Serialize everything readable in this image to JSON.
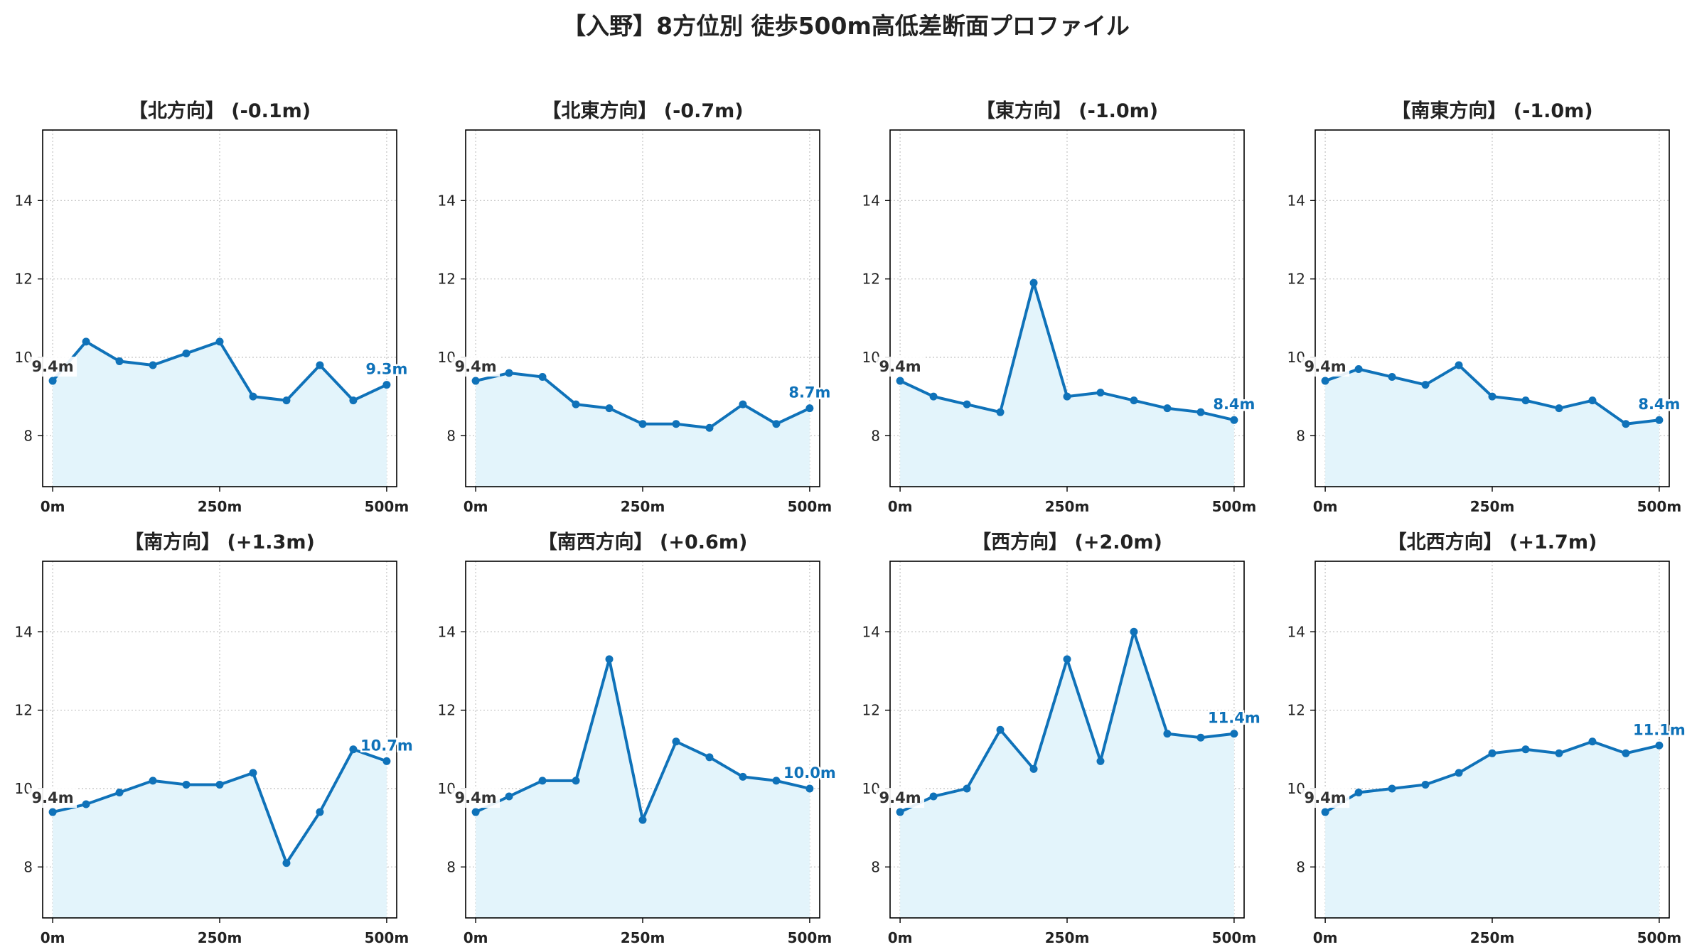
{
  "figure": {
    "title": "【入野】8方位別 徒歩500m高低差断面プロファイル"
  },
  "colors": {
    "line": "#0f72b9",
    "fill": "#e3f4fb",
    "end_label": "#0f72b9",
    "start_label": "#333333",
    "grid": "#c8c8c8",
    "axis": "#000000"
  },
  "chart_data": [
    {
      "type": "line",
      "title": "【北方向】 (-0.1m)",
      "x": [
        0,
        50,
        100,
        150,
        200,
        250,
        300,
        350,
        400,
        450,
        500
      ],
      "values": [
        9.4,
        10.4,
        9.9,
        9.8,
        10.1,
        10.4,
        9.0,
        8.9,
        9.8,
        8.9,
        9.3
      ],
      "start_label": "9.4m",
      "end_label": "9.3m",
      "xticks": [
        "0m",
        "250m",
        "500m"
      ],
      "yticks": [
        "8",
        "10",
        "12",
        "14"
      ],
      "ylim": [
        6.7,
        15.8
      ],
      "xlim": [
        -15,
        515
      ],
      "grid": true
    },
    {
      "type": "line",
      "title": "【北東方向】 (-0.7m)",
      "x": [
        0,
        50,
        100,
        150,
        200,
        250,
        300,
        350,
        400,
        450,
        500
      ],
      "values": [
        9.4,
        9.6,
        9.5,
        8.8,
        8.7,
        8.3,
        8.3,
        8.2,
        8.8,
        8.3,
        8.7
      ],
      "start_label": "9.4m",
      "end_label": "8.7m",
      "xticks": [
        "0m",
        "250m",
        "500m"
      ],
      "yticks": [
        "8",
        "10",
        "12",
        "14"
      ],
      "ylim": [
        6.7,
        15.8
      ],
      "xlim": [
        -15,
        515
      ],
      "grid": true
    },
    {
      "type": "line",
      "title": "【東方向】 (-1.0m)",
      "x": [
        0,
        50,
        100,
        150,
        200,
        250,
        300,
        350,
        400,
        450,
        500
      ],
      "values": [
        9.4,
        9.0,
        8.8,
        8.6,
        11.9,
        9.0,
        9.1,
        8.9,
        8.7,
        8.6,
        8.4
      ],
      "start_label": "9.4m",
      "end_label": "8.4m",
      "xticks": [
        "0m",
        "250m",
        "500m"
      ],
      "yticks": [
        "8",
        "10",
        "12",
        "14"
      ],
      "ylim": [
        6.7,
        15.8
      ],
      "xlim": [
        -15,
        515
      ],
      "grid": true
    },
    {
      "type": "line",
      "title": "【南東方向】 (-1.0m)",
      "x": [
        0,
        50,
        100,
        150,
        200,
        250,
        300,
        350,
        400,
        450,
        500
      ],
      "values": [
        9.4,
        9.7,
        9.5,
        9.3,
        9.8,
        9.0,
        8.9,
        8.7,
        8.9,
        8.3,
        8.4
      ],
      "start_label": "9.4m",
      "end_label": "8.4m",
      "xticks": [
        "0m",
        "250m",
        "500m"
      ],
      "yticks": [
        "8",
        "10",
        "12",
        "14"
      ],
      "ylim": [
        6.7,
        15.8
      ],
      "xlim": [
        -15,
        515
      ],
      "grid": true
    },
    {
      "type": "line",
      "title": "【南方向】 (+1.3m)",
      "x": [
        0,
        50,
        100,
        150,
        200,
        250,
        300,
        350,
        400,
        450,
        500
      ],
      "values": [
        9.4,
        9.6,
        9.9,
        10.2,
        10.1,
        10.1,
        10.4,
        8.1,
        9.4,
        11.0,
        10.7
      ],
      "start_label": "9.4m",
      "end_label": "10.7m",
      "xticks": [
        "0m",
        "250m",
        "500m"
      ],
      "yticks": [
        "8",
        "10",
        "12",
        "14"
      ],
      "ylim": [
        6.7,
        15.8
      ],
      "xlim": [
        -15,
        515
      ],
      "grid": true
    },
    {
      "type": "line",
      "title": "【南西方向】 (+0.6m)",
      "x": [
        0,
        50,
        100,
        150,
        200,
        250,
        300,
        350,
        400,
        450,
        500
      ],
      "values": [
        9.4,
        9.8,
        10.2,
        10.2,
        13.3,
        9.2,
        11.2,
        10.8,
        10.3,
        10.2,
        10.0
      ],
      "start_label": "9.4m",
      "end_label": "10.0m",
      "xticks": [
        "0m",
        "250m",
        "500m"
      ],
      "yticks": [
        "8",
        "10",
        "12",
        "14"
      ],
      "ylim": [
        6.7,
        15.8
      ],
      "xlim": [
        -15,
        515
      ],
      "grid": true
    },
    {
      "type": "line",
      "title": "【西方向】 (+2.0m)",
      "x": [
        0,
        50,
        100,
        150,
        200,
        250,
        300,
        350,
        400,
        450,
        500
      ],
      "values": [
        9.4,
        9.8,
        10.0,
        11.5,
        10.5,
        13.3,
        10.7,
        14.0,
        11.4,
        11.3,
        11.4
      ],
      "start_label": "9.4m",
      "end_label": "11.4m",
      "xticks": [
        "0m",
        "250m",
        "500m"
      ],
      "yticks": [
        "8",
        "10",
        "12",
        "14"
      ],
      "ylim": [
        6.7,
        15.8
      ],
      "xlim": [
        -15,
        515
      ],
      "grid": true
    },
    {
      "type": "line",
      "title": "【北西方向】 (+1.7m)",
      "x": [
        0,
        50,
        100,
        150,
        200,
        250,
        300,
        350,
        400,
        450,
        500
      ],
      "values": [
        9.4,
        9.9,
        10.0,
        10.1,
        10.4,
        10.9,
        11.0,
        10.9,
        11.2,
        10.9,
        11.1
      ],
      "start_label": "9.4m",
      "end_label": "11.1m",
      "xticks": [
        "0m",
        "250m",
        "500m"
      ],
      "yticks": [
        "8",
        "10",
        "12",
        "14"
      ],
      "ylim": [
        6.7,
        15.8
      ],
      "xlim": [
        -15,
        515
      ],
      "grid": true
    }
  ]
}
